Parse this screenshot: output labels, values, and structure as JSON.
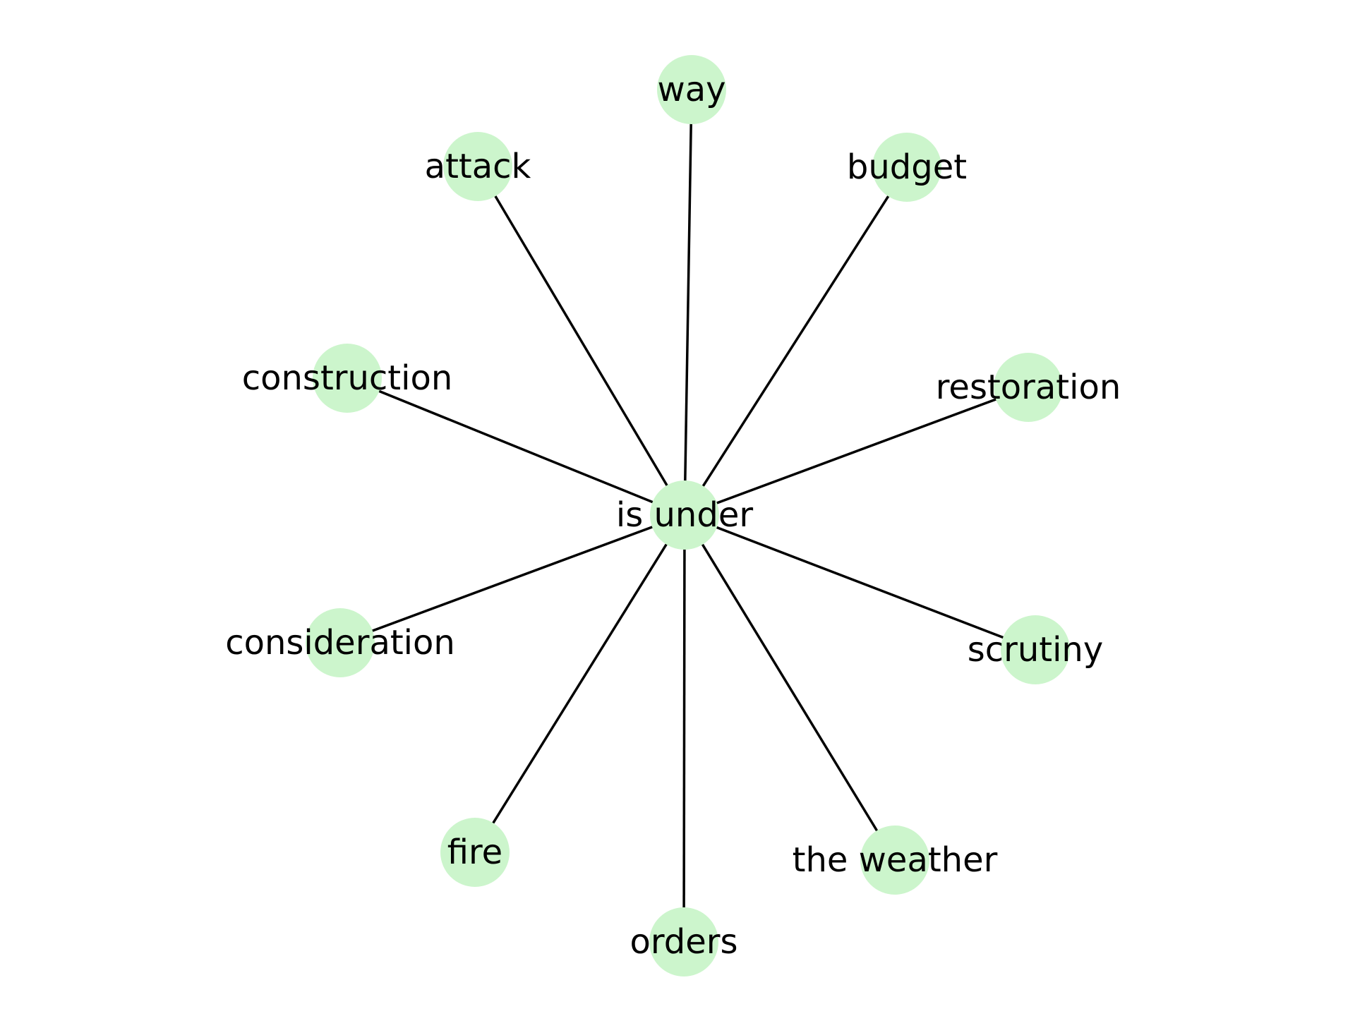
{
  "graph": {
    "center": {
      "id": "center",
      "label": "is under"
    },
    "nodes": [
      {
        "id": "way",
        "label": "way"
      },
      {
        "id": "attack",
        "label": "attack"
      },
      {
        "id": "budget",
        "label": "budget"
      },
      {
        "id": "construction",
        "label": "construction"
      },
      {
        "id": "restoration",
        "label": "restoration"
      },
      {
        "id": "consideration",
        "label": "consideration"
      },
      {
        "id": "scrutiny",
        "label": "scrutiny"
      },
      {
        "id": "fire",
        "label": "fire"
      },
      {
        "id": "the-weather",
        "label": "the weather"
      },
      {
        "id": "orders",
        "label": "orders"
      }
    ],
    "edges": [
      {
        "from": "center",
        "to": "way"
      },
      {
        "from": "center",
        "to": "attack"
      },
      {
        "from": "center",
        "to": "budget"
      },
      {
        "from": "center",
        "to": "construction"
      },
      {
        "from": "center",
        "to": "restoration"
      },
      {
        "from": "center",
        "to": "consideration"
      },
      {
        "from": "center",
        "to": "scrutiny"
      },
      {
        "from": "center",
        "to": "fire"
      },
      {
        "from": "center",
        "to": "the-weather"
      },
      {
        "from": "center",
        "to": "orders"
      }
    ],
    "colors": {
      "node_fill": "#ccf5cc",
      "edge": "#000000",
      "label": "#000000"
    }
  }
}
